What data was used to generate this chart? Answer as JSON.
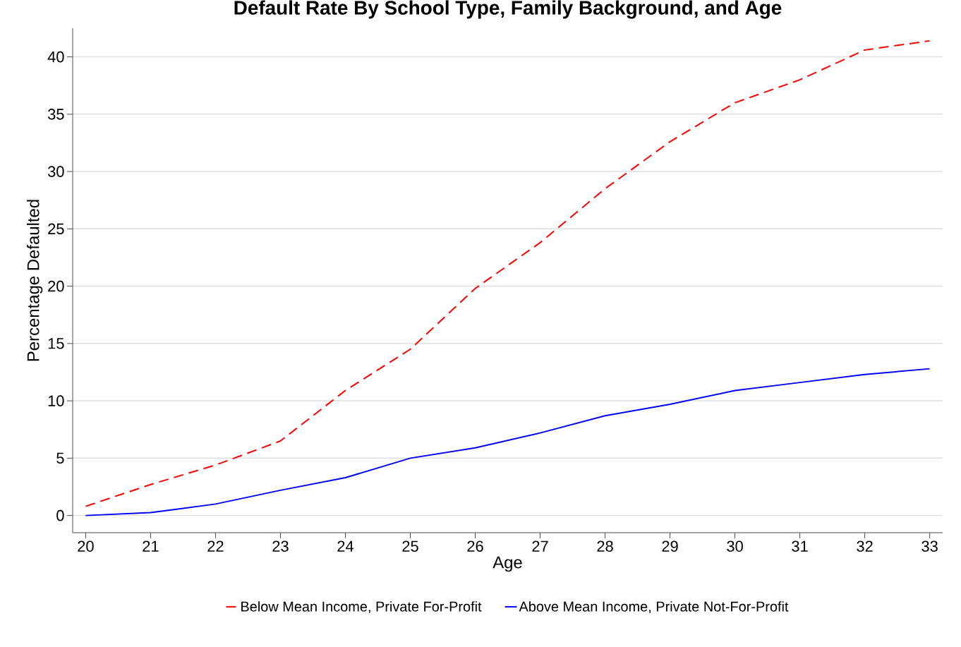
{
  "chart_data": {
    "type": "line",
    "title": "Default Rate By School Type, Family Background, and Age",
    "xlabel": "Age",
    "ylabel": "Percentage Defaulted",
    "x": [
      20,
      21,
      22,
      23,
      24,
      25,
      26,
      27,
      28,
      29,
      30,
      31,
      32,
      33
    ],
    "series": [
      {
        "name": "Below Mean Income, Private For-Profit",
        "color": "#ff0000",
        "line_style": "dashed",
        "values": [
          0.8,
          2.7,
          4.4,
          6.5,
          10.9,
          14.5,
          19.8,
          23.8,
          28.5,
          32.6,
          36.0,
          38.0,
          40.6,
          41.4
        ]
      },
      {
        "name": "Above Mean Income, Private Not-For-Profit",
        "color": "#0000ff",
        "line_style": "solid",
        "values": [
          0,
          0.25,
          1.0,
          2.2,
          3.3,
          5.0,
          5.9,
          7.2,
          8.7,
          9.7,
          10.9,
          11.6,
          12.3,
          12.8
        ]
      }
    ],
    "xlim": [
      19.8,
      33.2
    ],
    "ylim": [
      -1.5,
      42.5
    ],
    "xticks": [
      20,
      21,
      22,
      23,
      24,
      25,
      26,
      27,
      28,
      29,
      30,
      31,
      32,
      33
    ],
    "yticks": [
      0,
      5,
      10,
      15,
      20,
      25,
      30,
      35,
      40
    ],
    "grid": "y",
    "legend": "bottom",
    "marker": "none"
  }
}
